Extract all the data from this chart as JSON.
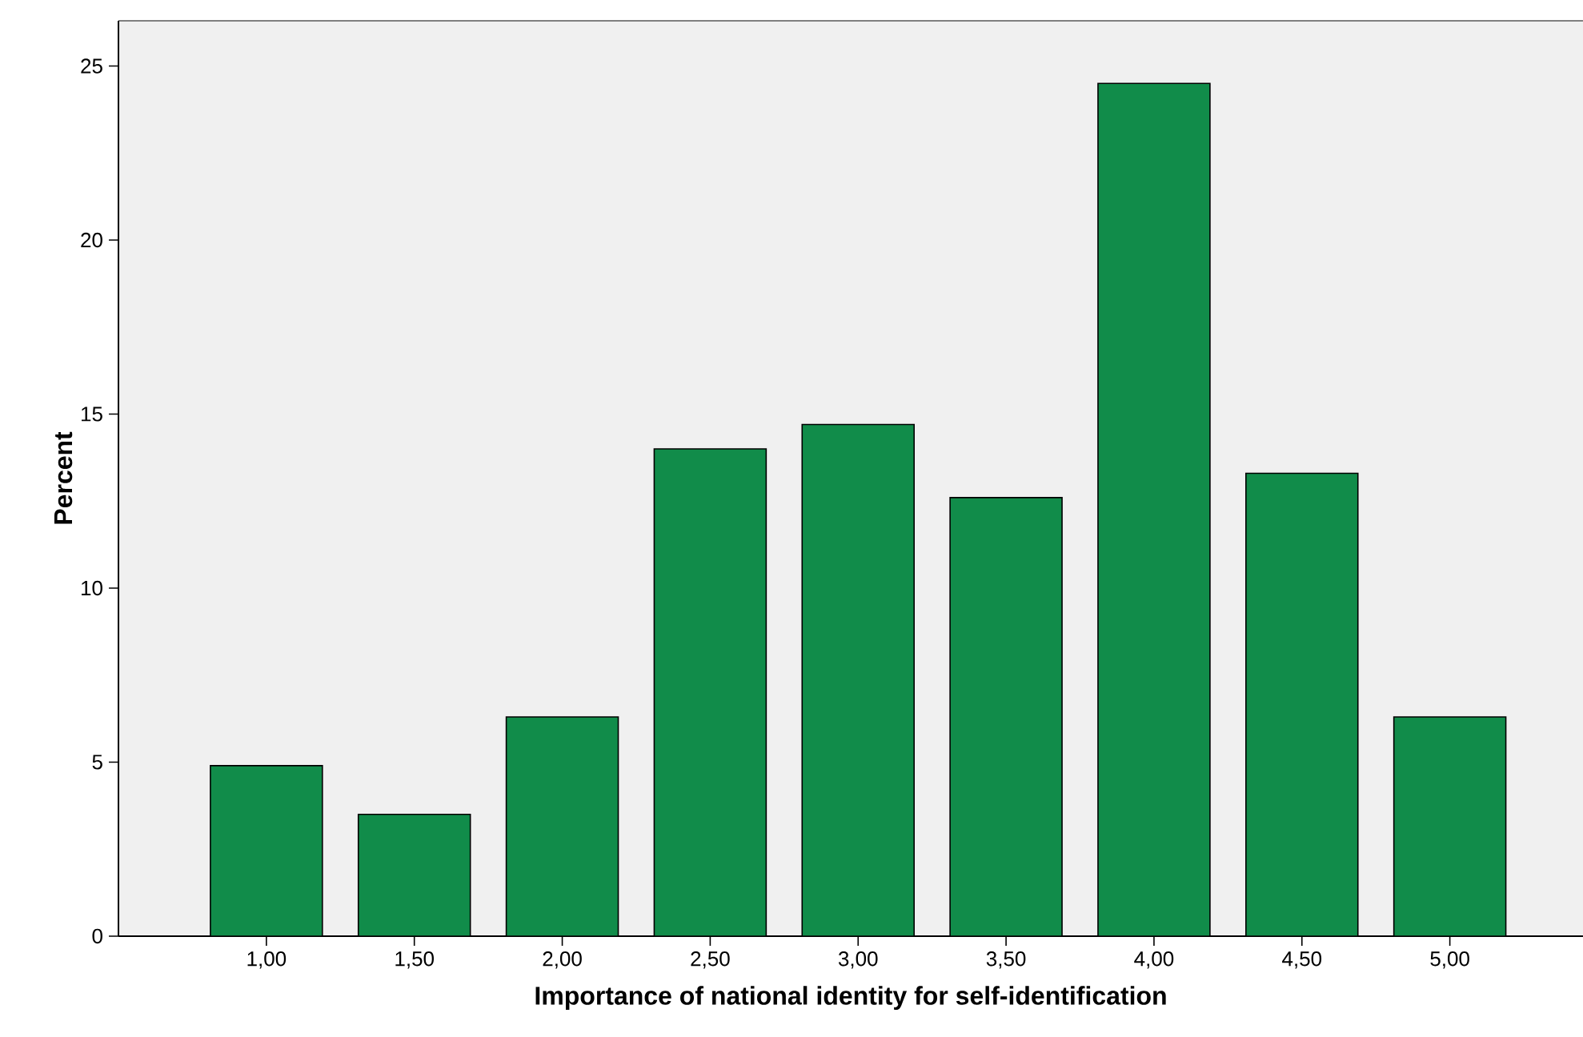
{
  "chart_data": {
    "type": "bar",
    "xlabel": "Importance of national identity for self-identification",
    "ylabel": "Percent",
    "categories": [
      "1,00",
      "1,50",
      "2,00",
      "2,50",
      "3,00",
      "3,50",
      "4,00",
      "4,50",
      "5,00"
    ],
    "values": [
      4.9,
      3.5,
      6.3,
      14.0,
      14.7,
      12.6,
      24.5,
      13.3,
      6.3
    ],
    "color": "#118c4a",
    "ylim": [
      0,
      26.3
    ],
    "yticks": [
      0,
      5,
      10,
      15,
      20,
      25
    ]
  }
}
